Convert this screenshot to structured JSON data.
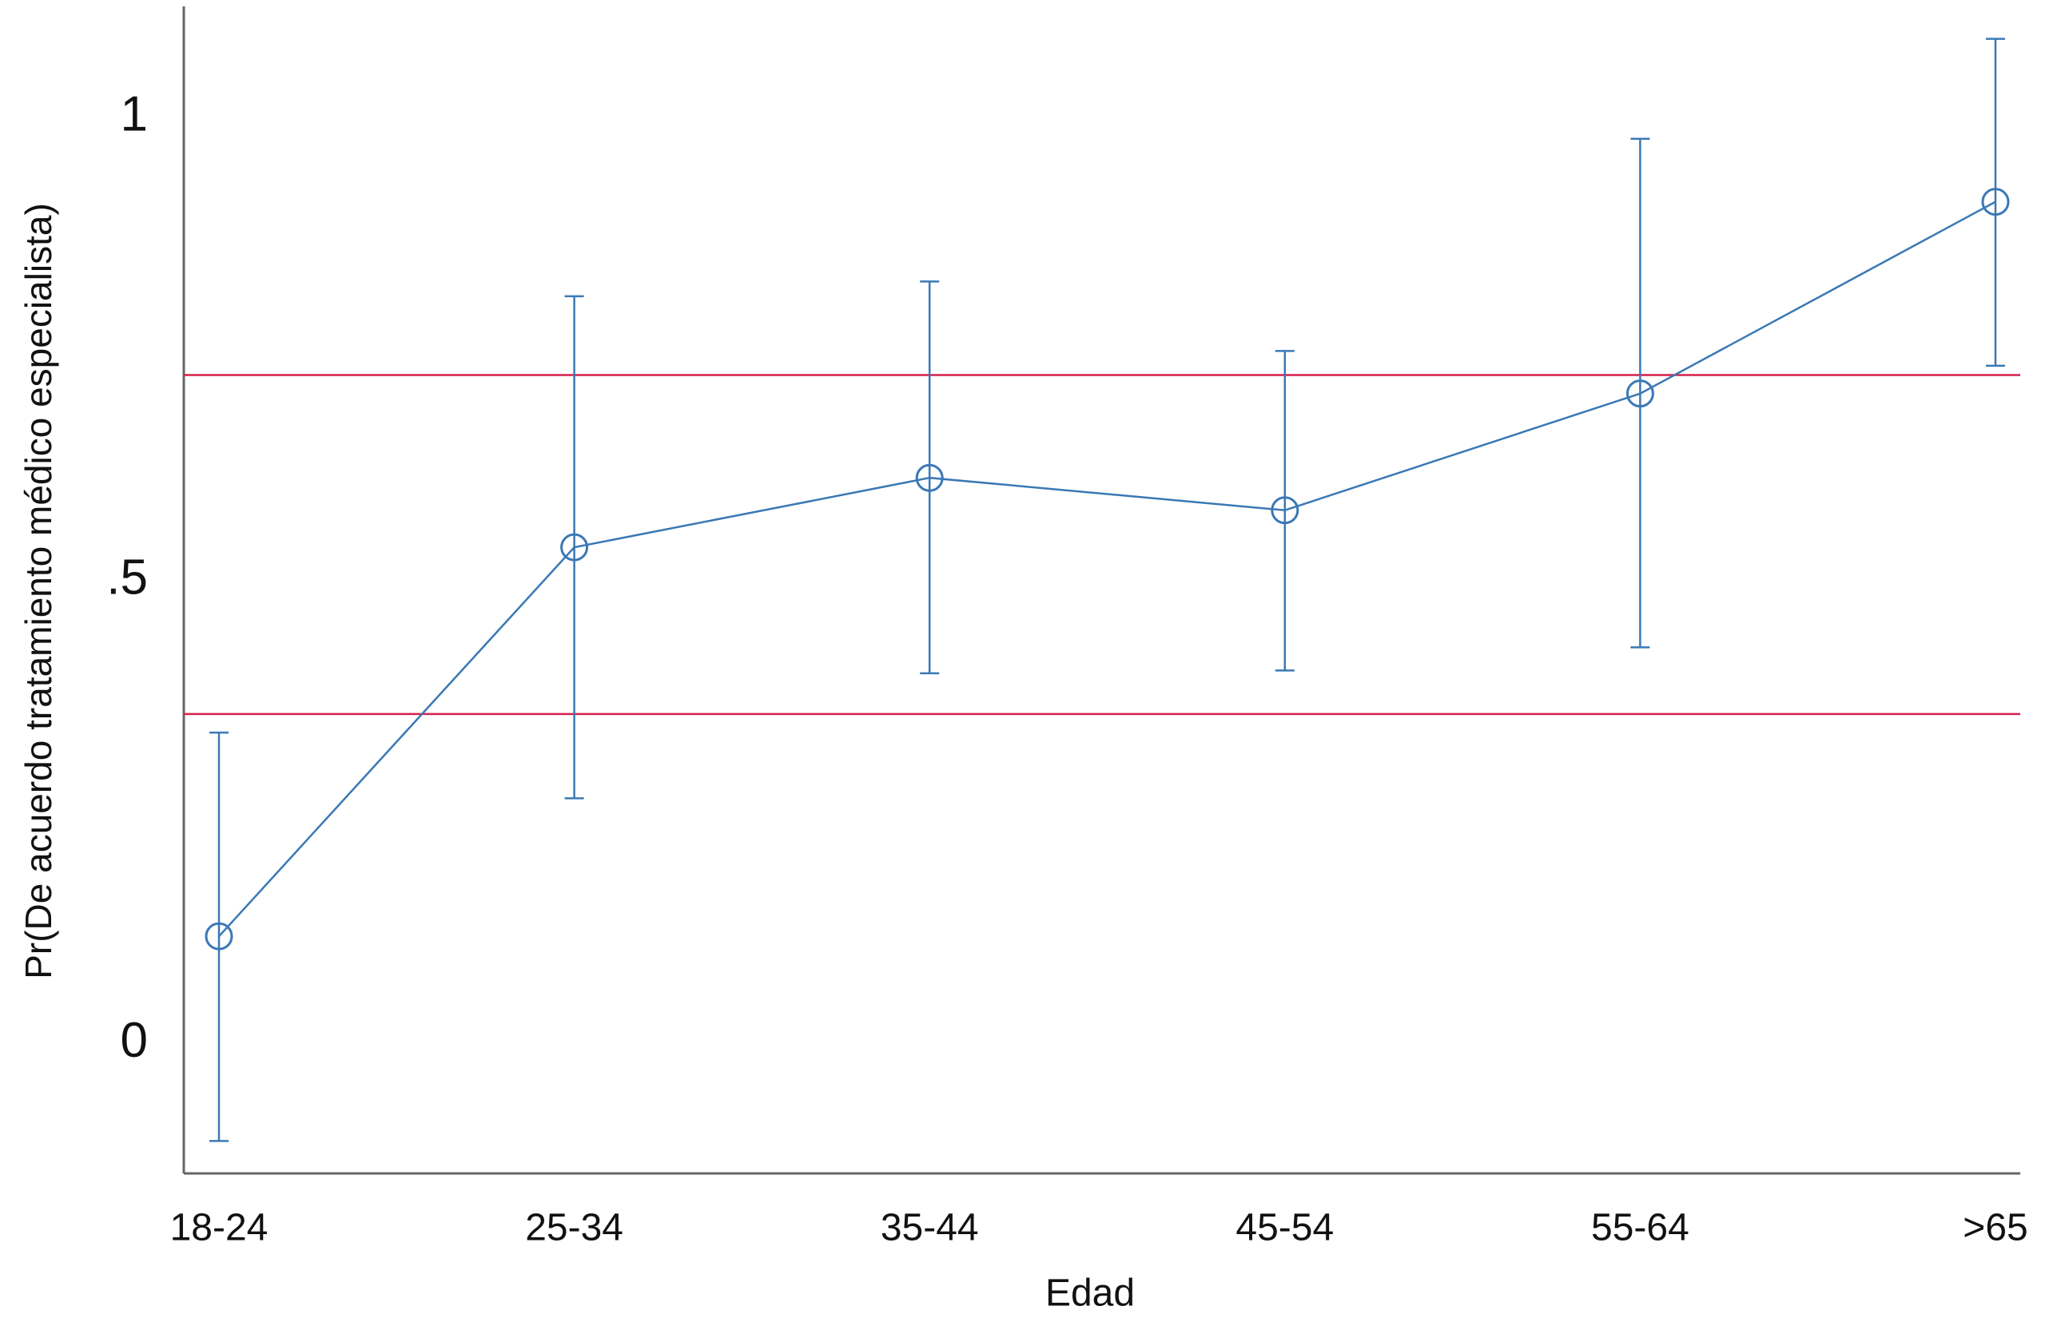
{
  "chart_data": {
    "type": "line",
    "xlabel": "Edad",
    "ylabel": "Pr(De acuerdo tratamiento médico especialista)",
    "categories": [
      "18-24",
      "25-34",
      "35-44",
      "45-54",
      "55-64",
      ">65"
    ],
    "series": [
      {
        "color": "#3a78b5",
        "values": [
          0.116,
          0.536,
          0.611,
          0.576,
          0.702,
          0.909
        ],
        "lower": [
          -0.105,
          0.265,
          0.4,
          0.403,
          0.428,
          0.732
        ],
        "upper": [
          0.336,
          0.807,
          0.823,
          0.748,
          0.977,
          1.085
        ]
      }
    ],
    "hlines": [
      {
        "value": 0.722,
        "color": "#d6204a"
      },
      {
        "value": 0.356,
        "color": "#d6204a"
      }
    ],
    "ylim": [
      -0.14,
      1.12
    ],
    "yticks": [
      0,
      {
        "value": 0.5,
        "label": ".5"
      },
      1
    ],
    "grid": false
  }
}
